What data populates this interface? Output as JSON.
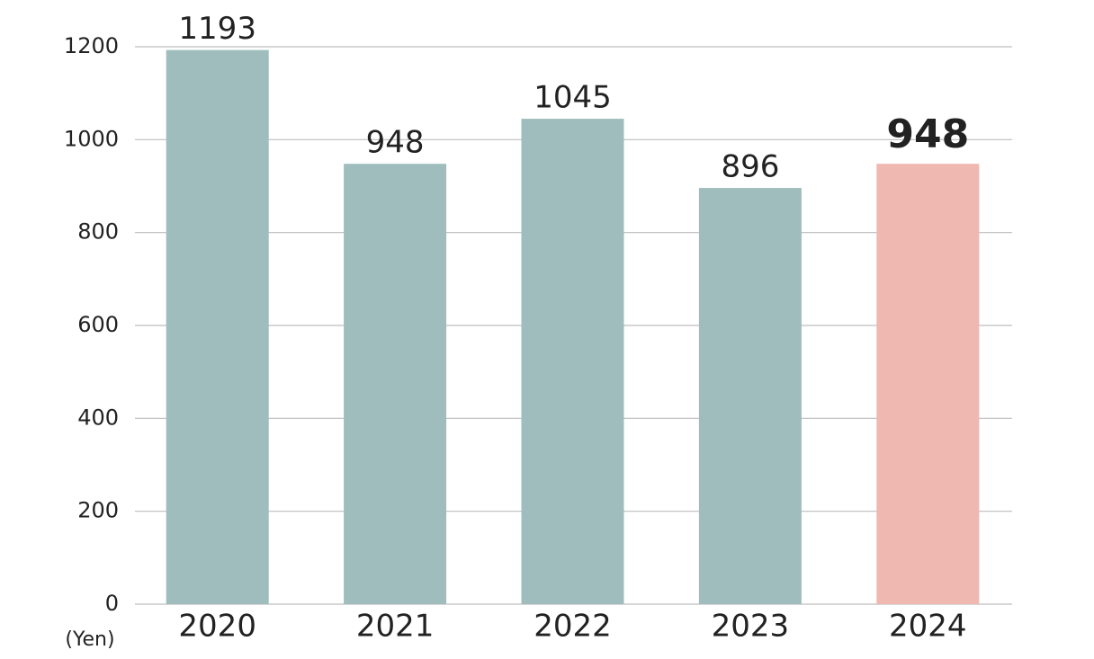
{
  "chart_data": {
    "type": "bar",
    "y_label": "(Yen)",
    "categories": [
      "2020",
      "2021",
      "2022",
      "2023",
      "2024"
    ],
    "values": [
      1193,
      948,
      1045,
      896,
      948
    ],
    "colors": [
      "#9fbdbd",
      "#9fbdbd",
      "#9fbdbd",
      "#9fbdbd",
      "#efb8b0"
    ],
    "bold_labels": [
      false,
      false,
      false,
      false,
      true
    ],
    "ylim": [
      0,
      1200
    ],
    "yticks": [
      0,
      200,
      400,
      600,
      800,
      1000,
      1200
    ],
    "grid": true
  }
}
